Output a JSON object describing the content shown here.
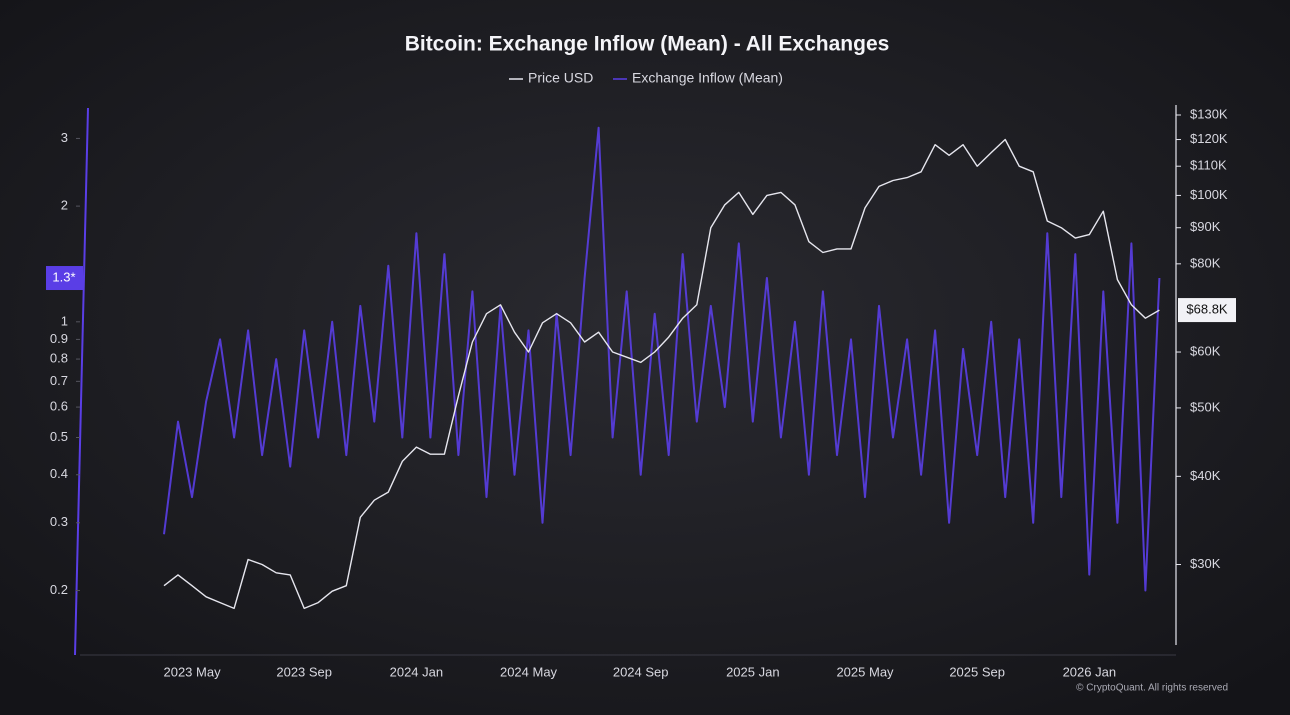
{
  "chart_data": {
    "type": "line",
    "title": "Bitcoin: Exchange Inflow (Mean) - All Exchanges",
    "footer": "© CryptoQuant. All rights reserved",
    "categories": [
      null,
      null,
      "2023 May",
      null,
      null,
      null,
      null,
      null,
      null,
      null,
      "2023 Sep",
      null,
      null,
      null,
      null,
      null,
      null,
      null,
      "2024 Jan",
      null,
      null,
      null,
      null,
      null,
      null,
      null,
      "2024 May",
      null,
      null,
      null,
      null,
      null,
      null,
      null,
      "2024 Sep",
      null,
      null,
      null,
      null,
      null,
      null,
      null,
      "2025 Jan",
      null,
      null,
      null,
      null,
      null,
      null,
      null,
      "2025 May",
      null,
      null,
      null,
      null,
      null,
      null,
      null,
      "2025 Sep",
      null,
      null,
      null,
      null,
      null,
      null,
      null,
      "2026 Jan",
      null,
      null,
      null,
      null,
      null
    ],
    "series": [
      {
        "name": "Price USD",
        "color": "#e6e6ee",
        "axis": "y2",
        "values": [
          28000,
          29000,
          28000,
          27000,
          26500,
          26000,
          30500,
          30000,
          29200,
          29000,
          26000,
          26500,
          27500,
          28000,
          35000,
          37000,
          38000,
          42000,
          44000,
          43000,
          43000,
          52000,
          62000,
          68000,
          70000,
          64000,
          60000,
          66000,
          68000,
          66000,
          62000,
          64000,
          60000,
          59000,
          58000,
          60000,
          63000,
          67000,
          70000,
          90000,
          97000,
          101000,
          94000,
          100000,
          101000,
          97000,
          86000,
          83000,
          84000,
          84000,
          96000,
          103000,
          105000,
          106000,
          108000,
          118000,
          114000,
          118000,
          110000,
          115000,
          120000,
          110000,
          108000,
          92000,
          90000,
          87000,
          88000,
          95000,
          76000,
          70000,
          67000,
          68800
        ]
      },
      {
        "name": "Exchange Inflow (Mean)",
        "color": "#5a3ee6",
        "axis": "y",
        "values": [
          0.28,
          0.55,
          0.35,
          0.62,
          0.9,
          0.5,
          0.95,
          0.45,
          0.8,
          0.42,
          0.95,
          0.5,
          1.0,
          0.45,
          1.1,
          0.55,
          1.4,
          0.5,
          1.7,
          0.5,
          1.5,
          0.45,
          1.2,
          0.35,
          1.1,
          0.4,
          0.95,
          0.3,
          1.05,
          0.45,
          1.3,
          3.2,
          0.5,
          1.2,
          0.4,
          1.05,
          0.45,
          1.5,
          0.55,
          1.1,
          0.6,
          1.6,
          0.55,
          1.3,
          0.5,
          1.0,
          0.4,
          1.2,
          0.45,
          0.9,
          0.35,
          1.1,
          0.5,
          0.9,
          0.4,
          0.95,
          0.3,
          0.85,
          0.45,
          1.0,
          0.35,
          0.9,
          0.3,
          1.7,
          0.35,
          1.5,
          0.22,
          1.2,
          0.3,
          1.6,
          0.2,
          1.3
        ]
      }
    ],
    "ylog": true,
    "ylim": [
      0.14,
      3.6
    ],
    "yticks": [
      0.2,
      0.3,
      0.4,
      0.5,
      0.6,
      0.7,
      0.8,
      0.9,
      1,
      2,
      3
    ],
    "y2log": true,
    "y2lim": [
      22700,
      133000
    ],
    "y2ticks": [
      {
        "value": 30000,
        "label": "$30K"
      },
      {
        "value": 40000,
        "label": "$40K"
      },
      {
        "value": 50000,
        "label": "$50K"
      },
      {
        "value": 60000,
        "label": "$60K"
      },
      {
        "value": 80000,
        "label": "$80K"
      },
      {
        "value": 90000,
        "label": "$90K"
      },
      {
        "value": 100000,
        "label": "$100K"
      },
      {
        "value": 110000,
        "label": "$110K"
      },
      {
        "value": 120000,
        "label": "$120K"
      },
      {
        "value": 130000,
        "label": "$130K"
      }
    ],
    "current_markers": [
      {
        "value": 1.3,
        "label": "1.3*",
        "axis": "y"
      },
      {
        "value": 68800,
        "label": "$68.8K",
        "axis": "y2"
      }
    ]
  }
}
